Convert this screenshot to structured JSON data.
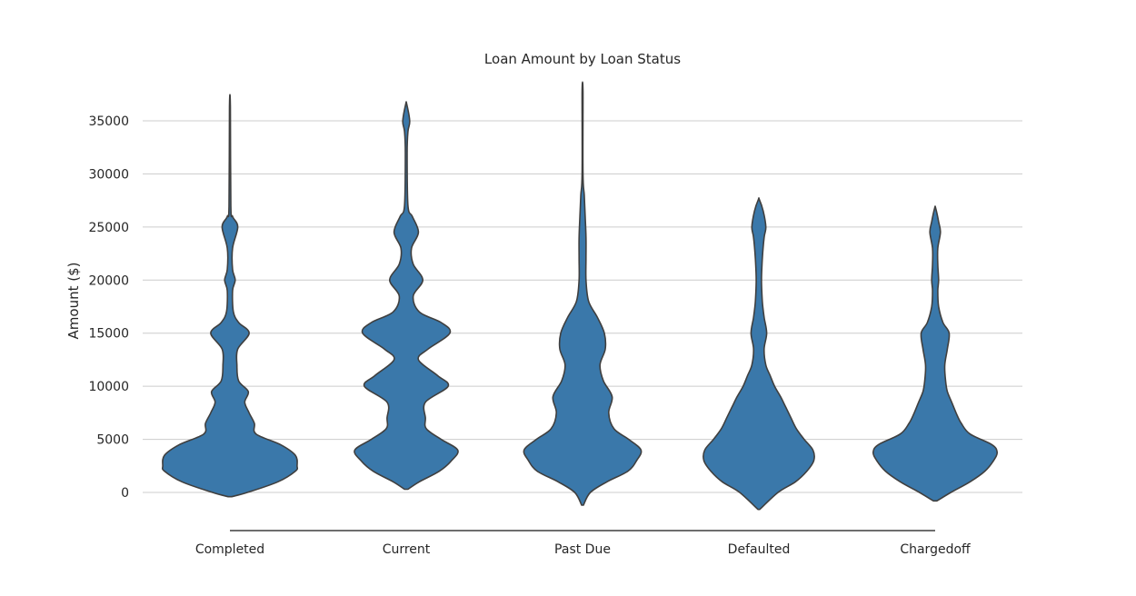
{
  "chart_data": {
    "type": "violin",
    "title": "Loan Amount by Loan Status",
    "xlabel": "",
    "ylabel": "Amount ($)",
    "ylim": [
      -2000,
      38000
    ],
    "yticks": [
      0,
      5000,
      10000,
      15000,
      20000,
      25000,
      30000,
      35000
    ],
    "grid": true,
    "color": "#3a78aa",
    "categories": [
      "Completed",
      "Current",
      "Past Due",
      "Defaulted",
      "Chargedoff"
    ],
    "series": [
      {
        "category": "Completed",
        "min": -400,
        "max": 36300,
        "profile": [
          [
            -400,
            0.02
          ],
          [
            0,
            0.2
          ],
          [
            1000,
            0.55
          ],
          [
            2000,
            0.75
          ],
          [
            2500,
            0.77
          ],
          [
            3500,
            0.75
          ],
          [
            4500,
            0.58
          ],
          [
            5500,
            0.3
          ],
          [
            6500,
            0.28
          ],
          [
            7500,
            0.22
          ],
          [
            8500,
            0.17
          ],
          [
            9500,
            0.21
          ],
          [
            10500,
            0.1
          ],
          [
            12000,
            0.08
          ],
          [
            13500,
            0.09
          ],
          [
            15000,
            0.22
          ],
          [
            16000,
            0.1
          ],
          [
            17000,
            0.04
          ],
          [
            19000,
            0.03
          ],
          [
            20000,
            0.06
          ],
          [
            21000,
            0.03
          ],
          [
            23000,
            0.03
          ],
          [
            25000,
            0.09
          ],
          [
            26000,
            0.03
          ],
          [
            27000,
            0.01
          ],
          [
            36300,
            0.005
          ]
        ]
      },
      {
        "category": "Current",
        "min": 300,
        "max": 36600,
        "profile": [
          [
            300,
            0.02
          ],
          [
            1000,
            0.15
          ],
          [
            2000,
            0.38
          ],
          [
            3000,
            0.52
          ],
          [
            4000,
            0.59
          ],
          [
            5000,
            0.4
          ],
          [
            6000,
            0.23
          ],
          [
            7000,
            0.22
          ],
          [
            8500,
            0.22
          ],
          [
            10000,
            0.48
          ],
          [
            11000,
            0.36
          ],
          [
            12500,
            0.14
          ],
          [
            13500,
            0.25
          ],
          [
            15000,
            0.5
          ],
          [
            16000,
            0.4
          ],
          [
            17000,
            0.15
          ],
          [
            18500,
            0.08
          ],
          [
            20000,
            0.19
          ],
          [
            21500,
            0.08
          ],
          [
            23000,
            0.06
          ],
          [
            24500,
            0.14
          ],
          [
            26000,
            0.07
          ],
          [
            27000,
            0.02
          ],
          [
            32000,
            0.01
          ],
          [
            34000,
            0.02
          ],
          [
            35000,
            0.04
          ],
          [
            36600,
            0.005
          ]
        ]
      },
      {
        "category": "Past Due",
        "min": -1200,
        "max": 37700,
        "profile": [
          [
            -1200,
            0.01
          ],
          [
            0,
            0.09
          ],
          [
            1000,
            0.28
          ],
          [
            2000,
            0.52
          ],
          [
            3000,
            0.62
          ],
          [
            4000,
            0.67
          ],
          [
            5000,
            0.53
          ],
          [
            6000,
            0.36
          ],
          [
            7500,
            0.3
          ],
          [
            9000,
            0.34
          ],
          [
            10500,
            0.24
          ],
          [
            12000,
            0.2
          ],
          [
            13500,
            0.26
          ],
          [
            15000,
            0.25
          ],
          [
            16500,
            0.17
          ],
          [
            18000,
            0.07
          ],
          [
            20000,
            0.04
          ],
          [
            22000,
            0.04
          ],
          [
            24000,
            0.04
          ],
          [
            26000,
            0.03
          ],
          [
            28000,
            0.02
          ],
          [
            30000,
            0.005
          ],
          [
            37700,
            0.005
          ]
        ]
      },
      {
        "category": "Defaulted",
        "min": -1600,
        "max": 27600,
        "profile": [
          [
            -1600,
            0.01
          ],
          [
            0,
            0.22
          ],
          [
            1000,
            0.42
          ],
          [
            2000,
            0.55
          ],
          [
            3000,
            0.63
          ],
          [
            4000,
            0.62
          ],
          [
            5000,
            0.52
          ],
          [
            6000,
            0.43
          ],
          [
            7000,
            0.37
          ],
          [
            8000,
            0.31
          ],
          [
            9000,
            0.25
          ],
          [
            10000,
            0.18
          ],
          [
            11000,
            0.13
          ],
          [
            12000,
            0.08
          ],
          [
            13500,
            0.06
          ],
          [
            15000,
            0.09
          ],
          [
            16500,
            0.06
          ],
          [
            18000,
            0.04
          ],
          [
            20000,
            0.03
          ],
          [
            22000,
            0.04
          ],
          [
            24000,
            0.06
          ],
          [
            25000,
            0.08
          ],
          [
            26500,
            0.05
          ],
          [
            27600,
            0.005
          ]
        ]
      },
      {
        "category": "Chargedoff",
        "min": -800,
        "max": 26800,
        "profile": [
          [
            -800,
            0.02
          ],
          [
            0,
            0.18
          ],
          [
            1000,
            0.4
          ],
          [
            2000,
            0.57
          ],
          [
            3000,
            0.67
          ],
          [
            3800,
            0.71
          ],
          [
            4500,
            0.65
          ],
          [
            5500,
            0.4
          ],
          [
            6500,
            0.3
          ],
          [
            7500,
            0.24
          ],
          [
            8500,
            0.19
          ],
          [
            9500,
            0.14
          ],
          [
            10500,
            0.12
          ],
          [
            12000,
            0.11
          ],
          [
            13500,
            0.14
          ],
          [
            15000,
            0.16
          ],
          [
            16000,
            0.09
          ],
          [
            17500,
            0.04
          ],
          [
            19000,
            0.03
          ],
          [
            20000,
            0.04
          ],
          [
            21500,
            0.03
          ],
          [
            23000,
            0.03
          ],
          [
            24500,
            0.06
          ],
          [
            25500,
            0.04
          ],
          [
            26800,
            0.005
          ]
        ]
      }
    ]
  }
}
